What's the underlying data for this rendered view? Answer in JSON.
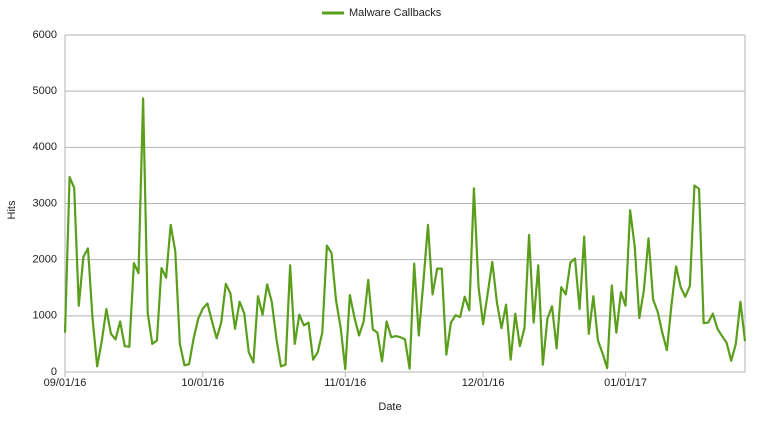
{
  "chart_data": {
    "type": "line",
    "x_label": "Date",
    "y_label": "Hits",
    "x": [
      "09/01/16",
      "09/02/16",
      "09/03/16",
      "09/04/16",
      "09/05/16",
      "09/06/16",
      "09/07/16",
      "09/08/16",
      "09/09/16",
      "09/10/16",
      "09/11/16",
      "09/12/16",
      "09/13/16",
      "09/14/16",
      "09/15/16",
      "09/16/16",
      "09/17/16",
      "09/18/16",
      "09/19/16",
      "09/20/16",
      "09/21/16",
      "09/22/16",
      "09/23/16",
      "09/24/16",
      "09/25/16",
      "09/26/16",
      "09/27/16",
      "09/28/16",
      "09/29/16",
      "09/30/16",
      "10/01/16",
      "10/02/16",
      "10/03/16",
      "10/04/16",
      "10/05/16",
      "10/06/16",
      "10/07/16",
      "10/08/16",
      "10/09/16",
      "10/10/16",
      "10/11/16",
      "10/12/16",
      "10/13/16",
      "10/14/16",
      "10/15/16",
      "10/16/16",
      "10/17/16",
      "10/18/16",
      "10/19/16",
      "10/20/16",
      "10/21/16",
      "10/22/16",
      "10/23/16",
      "10/24/16",
      "10/25/16",
      "10/26/16",
      "10/27/16",
      "10/28/16",
      "10/29/16",
      "10/30/16",
      "10/31/16",
      "11/01/16",
      "11/02/16",
      "11/03/16",
      "11/04/16",
      "11/05/16",
      "11/06/16",
      "11/07/16",
      "11/08/16",
      "11/09/16",
      "11/10/16",
      "11/11/16",
      "11/12/16",
      "11/13/16",
      "11/14/16",
      "11/15/16",
      "11/16/16",
      "11/17/16",
      "11/18/16",
      "11/19/16",
      "11/20/16",
      "11/21/16",
      "11/22/16",
      "11/23/16",
      "11/24/16",
      "11/25/16",
      "11/26/16",
      "11/27/16",
      "11/28/16",
      "11/29/16",
      "11/30/16",
      "12/01/16",
      "12/02/16",
      "12/03/16",
      "12/04/16",
      "12/05/16",
      "12/06/16",
      "12/07/16",
      "12/08/16",
      "12/09/16",
      "12/10/16",
      "12/11/16",
      "12/12/16",
      "12/13/16",
      "12/14/16",
      "12/15/16",
      "12/16/16",
      "12/17/16",
      "12/18/16",
      "12/19/16",
      "12/20/16",
      "12/21/16",
      "12/22/16",
      "12/23/16",
      "12/24/16",
      "12/25/16",
      "12/26/16",
      "12/27/16",
      "12/28/16",
      "12/29/16",
      "12/30/16",
      "12/31/16",
      "01/01/17",
      "01/02/17",
      "01/03/17",
      "01/04/17",
      "01/05/17",
      "01/06/17",
      "01/07/17",
      "01/08/17",
      "01/09/17",
      "01/10/17",
      "01/11/17",
      "01/12/17",
      "01/13/17",
      "01/14/17",
      "01/15/17",
      "01/16/17",
      "01/17/17",
      "01/18/17",
      "01/19/17",
      "01/20/17",
      "01/21/17",
      "01/22/17",
      "01/23/17",
      "01/24/17",
      "01/25/17",
      "01/26/17",
      "01/27/17"
    ],
    "series": [
      {
        "name": "Malware Callbacks",
        "color": "#5a9e1c",
        "values": [
          700,
          3470,
          3280,
          1180,
          2050,
          2200,
          950,
          100,
          550,
          1120,
          680,
          580,
          900,
          460,
          450,
          1940,
          1760,
          4870,
          1050,
          500,
          560,
          1850,
          1680,
          2620,
          2150,
          500,
          120,
          140,
          600,
          950,
          1130,
          1220,
          900,
          600,
          880,
          1570,
          1400,
          770,
          1250,
          1050,
          350,
          170,
          1350,
          1020,
          1560,
          1250,
          600,
          100,
          130,
          1900,
          500,
          1020,
          830,
          880,
          220,
          350,
          700,
          2250,
          2120,
          1270,
          790,
          50,
          1370,
          970,
          650,
          900,
          1640,
          760,
          700,
          190,
          900,
          620,
          640,
          620,
          580,
          60,
          1930,
          650,
          1600,
          2620,
          1380,
          1840,
          1840,
          310,
          880,
          1010,
          980,
          1340,
          1100,
          3270,
          1520,
          850,
          1400,
          1960,
          1240,
          780,
          1200,
          220,
          1040,
          460,
          780,
          2440,
          880,
          1900,
          130,
          950,
          1170,
          420,
          1510,
          1380,
          1950,
          2020,
          1120,
          2410,
          680,
          1350,
          560,
          330,
          70,
          1540,
          700,
          1420,
          1180,
          2880,
          2230,
          960,
          1460,
          2380,
          1290,
          1070,
          700,
          390,
          1200,
          1880,
          1510,
          1340,
          1530,
          3320,
          3260,
          870,
          880,
          1040,
          770,
          640,
          520,
          200,
          500,
          1250,
          550
        ]
      }
    ],
    "xlim": [
      "09/01/16",
      "01/27/17"
    ],
    "xticks": [
      "09/01/16",
      "10/01/16",
      "11/01/16",
      "12/01/16",
      "01/01/17"
    ],
    "ylim": [
      0,
      6000
    ],
    "yticks": [
      0,
      1000,
      2000,
      3000,
      4000,
      5000,
      6000
    ],
    "grid": true,
    "legend": "top"
  }
}
